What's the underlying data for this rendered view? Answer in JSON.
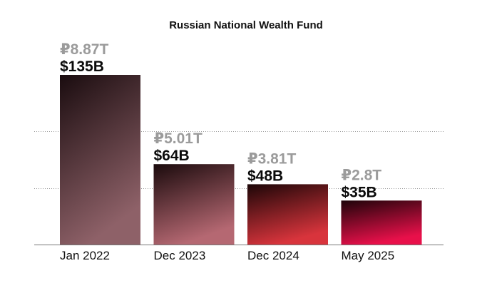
{
  "chart_data": {
    "type": "bar",
    "title": "Russian National Wealth Fund",
    "categories": [
      "Jan 2022",
      "Dec 2023",
      "Dec 2024",
      "May 2025"
    ],
    "series": [
      {
        "values": [
          135,
          64,
          48,
          35
        ]
      }
    ],
    "usd_labels": [
      "$135B",
      "$64B",
      "$48B",
      "$35B"
    ],
    "rub_labels": [
      "₽8.87T",
      "₽5.01T",
      "₽3.81T",
      "₽2.8T"
    ],
    "rub_values_trillions": [
      8.87,
      5.01,
      3.81,
      2.8
    ],
    "ylim": [
      0,
      135
    ],
    "xlabel": "",
    "ylabel": "",
    "grid": true,
    "bar_gradients": [
      {
        "top": "#1a0c0f",
        "bottom": "#8e6168"
      },
      {
        "top": "#1a0a0c",
        "bottom": "#b56872"
      },
      {
        "top": "#1c0607",
        "bottom": "#d8343c"
      },
      {
        "top": "#1e0409",
        "bottom": "#e8104a"
      }
    ]
  }
}
